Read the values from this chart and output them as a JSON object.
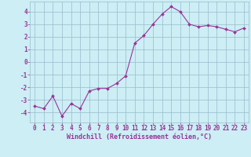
{
  "xlabel": "Windchill (Refroidissement éolien,°C)",
  "x_values": [
    0,
    1,
    2,
    3,
    4,
    5,
    6,
    7,
    8,
    9,
    10,
    11,
    12,
    13,
    14,
    15,
    16,
    17,
    18,
    19,
    20,
    21,
    22,
    23
  ],
  "y_values": [
    -3.5,
    -3.7,
    -2.7,
    -4.3,
    -3.3,
    -3.7,
    -2.3,
    -2.1,
    -2.1,
    -1.7,
    -1.1,
    1.5,
    2.1,
    3.0,
    3.8,
    4.4,
    4.0,
    3.0,
    2.8,
    2.9,
    2.8,
    2.6,
    2.4,
    2.7
  ],
  "line_color": "#993399",
  "marker": "D",
  "marker_size": 2.0,
  "line_width": 0.8,
  "background_color": "#cceef4",
  "grid_color": "#99bbcc",
  "tick_label_color": "#993399",
  "xlabel_color": "#993399",
  "ylim": [
    -4.8,
    4.8
  ],
  "yticks": [
    -4,
    -3,
    -2,
    -1,
    0,
    1,
    2,
    3,
    4
  ],
  "xlim": [
    -0.5,
    23.5
  ],
  "xticks": [
    0,
    1,
    2,
    3,
    4,
    5,
    6,
    7,
    8,
    9,
    10,
    11,
    12,
    13,
    14,
    15,
    16,
    17,
    18,
    19,
    20,
    21,
    22,
    23
  ],
  "tick_fontsize": 5.5,
  "xlabel_fontsize": 6.0,
  "xlabel_fontweight": "bold"
}
